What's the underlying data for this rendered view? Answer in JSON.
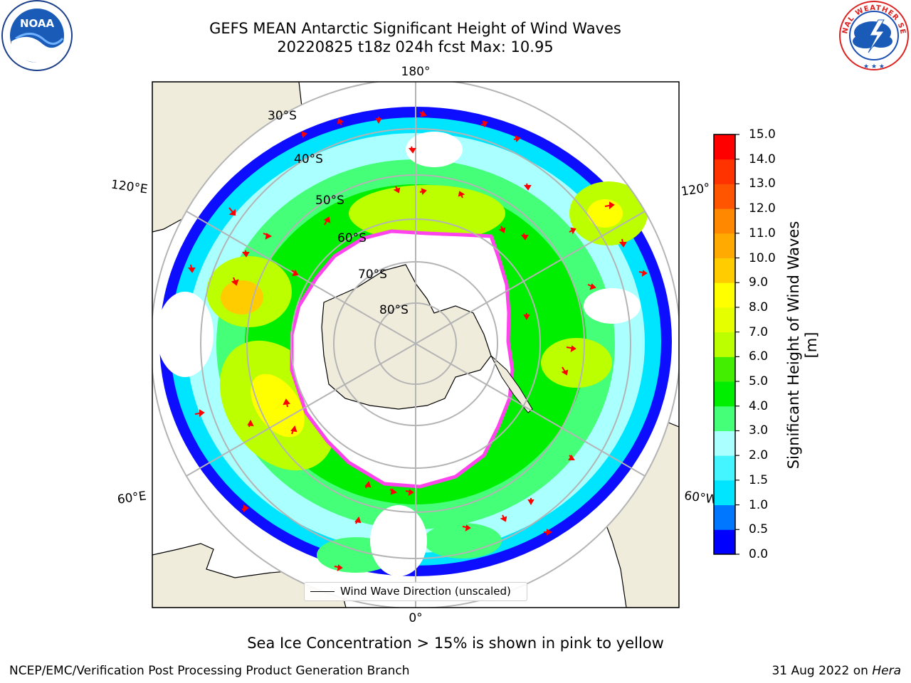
{
  "title": {
    "line1": "GEFS MEAN Antarctic Significant Height of Wind Waves",
    "line2": "20220825 t18z 024h fcst   Max: 10.95"
  },
  "map": {
    "longitude_labels": {
      "top": "180°",
      "bottom": "0°",
      "upper_left": "120°E",
      "upper_right": "120°",
      "lower_left": "60°E",
      "lower_right": "60°W"
    },
    "latitude_labels": [
      "30°S",
      "40°S",
      "50°S",
      "60°S",
      "70°S",
      "80°S"
    ],
    "colors": {
      "land": "#efecdc",
      "grid": "#b4b4b4",
      "arrow": "#ff0000",
      "ice_edge": "#ff44ee"
    }
  },
  "legend": {
    "label": "Wind Wave Direction (unscaled)"
  },
  "colorbar": {
    "label": "Significant Height of Wind Waves [m]",
    "ticks": [
      "0.0",
      "0.5",
      "1.0",
      "1.5",
      "2.0",
      "3.0",
      "4.0",
      "5.0",
      "6.0",
      "7.0",
      "8.0",
      "9.0",
      "10.0",
      "11.0",
      "12.0",
      "13.0",
      "14.0",
      "15.0"
    ],
    "colors": [
      "#0000ff",
      "#0077ff",
      "#00e5ff",
      "#44f5ff",
      "#aaffff",
      "#44ff77",
      "#00ee00",
      "#44ee00",
      "#bbff00",
      "#e6ff00",
      "#ffff00",
      "#ffcc00",
      "#ffaa00",
      "#ff8800",
      "#ff5500",
      "#ff3300",
      "#ff0000"
    ]
  },
  "subtitle": "Sea Ice Concentration > 15% is shown in pink to yellow",
  "footer": {
    "left": "NCEP/EMC/Verification Post Processing Product Generation Branch",
    "right_prefix": "31 Aug 2022 on ",
    "right_system": "Hera"
  },
  "logos": {
    "noaa": "NOAA",
    "nws": "NATIONAL WEATHER SERVICE"
  }
}
